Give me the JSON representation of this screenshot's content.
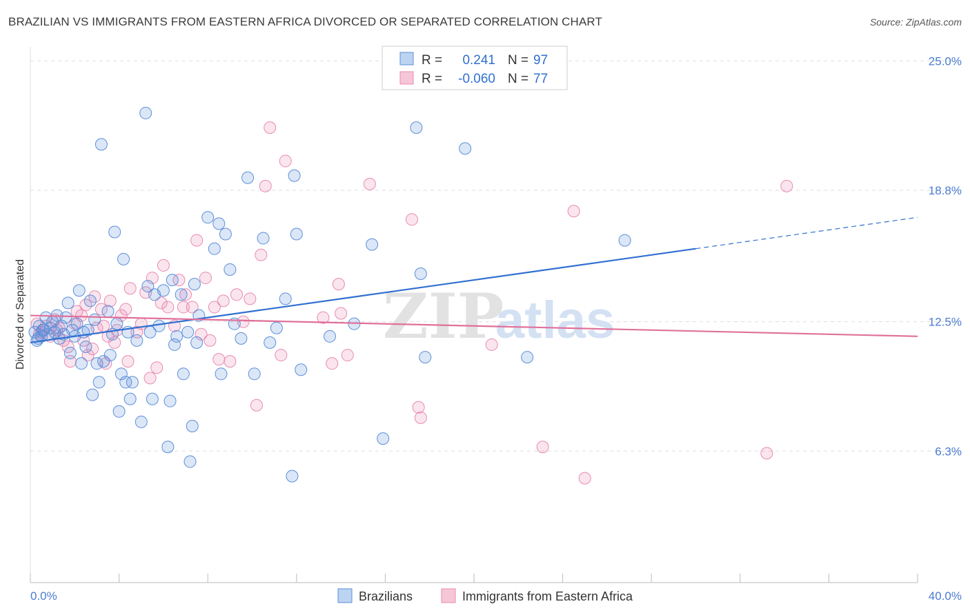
{
  "title": "BRAZILIAN VS IMMIGRANTS FROM EASTERN AFRICA DIVORCED OR SEPARATED CORRELATION CHART",
  "source": "Source: ZipAtlas.com",
  "watermark": {
    "zip": "ZIP",
    "atlas": "atlas"
  },
  "colors": {
    "blue": "#5b8fd9",
    "blue_line": "#2f6fd0",
    "pink": "#e88ab0",
    "pink_line": "#e0709a",
    "axis_text": "#4a7bd0"
  },
  "legend": {
    "rows": [
      {
        "r_label": "R =",
        "r_value": "0.241",
        "n_label": "N =",
        "n_value": "97"
      },
      {
        "r_label": "R =",
        "r_value": "-0.060",
        "n_label": "N =",
        "n_value": "77"
      }
    ]
  },
  "bottom_legend": [
    "Brazilians",
    "Immigrants from Eastern Africa"
  ],
  "chart_data": {
    "type": "scatter",
    "title": "BRAZILIAN VS IMMIGRANTS FROM EASTERN AFRICA DIVORCED OR SEPARATED CORRELATION CHART",
    "xlabel": "",
    "ylabel": "Divorced or Separated",
    "xlim": [
      0,
      40
    ],
    "ylim": [
      0,
      26
    ],
    "x_tick_labels": [
      "0.0%",
      "40.0%"
    ],
    "y_ticks": [
      6.3,
      12.5,
      18.8,
      25.0
    ],
    "y_tick_labels": [
      "6.3%",
      "12.5%",
      "18.8%",
      "25.0%"
    ],
    "grid": "horizontal dashed",
    "legend_position": "top-center",
    "series": [
      {
        "name": "Brazilians",
        "color": "#5b8fd9",
        "trend": {
          "x": [
            0,
            30
          ],
          "y": [
            11.5,
            16.0
          ],
          "dashed_to": [
            40,
            17.5
          ]
        },
        "points": [
          [
            0.2,
            12.0
          ],
          [
            0.3,
            11.6
          ],
          [
            0.4,
            12.3
          ],
          [
            0.5,
            11.8
          ],
          [
            0.6,
            12.1
          ],
          [
            0.7,
            12.7
          ],
          [
            0.8,
            11.9
          ],
          [
            0.9,
            12.2
          ],
          [
            1.0,
            12.5
          ],
          [
            1.1,
            12.0
          ],
          [
            1.2,
            12.8
          ],
          [
            1.4,
            12.3
          ],
          [
            1.5,
            11.9
          ],
          [
            1.6,
            12.7
          ],
          [
            1.7,
            13.4
          ],
          [
            1.8,
            11.0
          ],
          [
            1.9,
            12.1
          ],
          [
            2.0,
            11.8
          ],
          [
            2.1,
            12.4
          ],
          [
            2.2,
            14.0
          ],
          [
            2.3,
            10.5
          ],
          [
            2.5,
            11.3
          ],
          [
            2.6,
            12.1
          ],
          [
            2.7,
            13.5
          ],
          [
            2.8,
            9.0
          ],
          [
            2.9,
            12.6
          ],
          [
            3.0,
            10.5
          ],
          [
            3.1,
            9.6
          ],
          [
            3.2,
            21.0
          ],
          [
            3.3,
            10.6
          ],
          [
            3.5,
            13.0
          ],
          [
            3.6,
            10.9
          ],
          [
            3.8,
            16.8
          ],
          [
            3.9,
            12.4
          ],
          [
            4.0,
            8.2
          ],
          [
            4.1,
            10.0
          ],
          [
            4.2,
            15.5
          ],
          [
            4.3,
            9.6
          ],
          [
            4.4,
            12.0
          ],
          [
            4.5,
            8.8
          ],
          [
            4.6,
            9.6
          ],
          [
            4.8,
            11.6
          ],
          [
            5.0,
            7.7
          ],
          [
            5.2,
            22.5
          ],
          [
            5.3,
            14.2
          ],
          [
            5.4,
            12.0
          ],
          [
            5.5,
            8.8
          ],
          [
            5.6,
            13.8
          ],
          [
            5.8,
            12.3
          ],
          [
            6.0,
            14.0
          ],
          [
            6.2,
            6.5
          ],
          [
            6.3,
            8.7
          ],
          [
            6.4,
            14.5
          ],
          [
            6.5,
            11.4
          ],
          [
            6.6,
            11.8
          ],
          [
            6.8,
            13.8
          ],
          [
            6.9,
            10.0
          ],
          [
            7.1,
            12.0
          ],
          [
            7.2,
            5.8
          ],
          [
            7.3,
            7.5
          ],
          [
            7.4,
            14.3
          ],
          [
            7.5,
            11.5
          ],
          [
            7.6,
            12.8
          ],
          [
            8.0,
            17.5
          ],
          [
            8.3,
            16.0
          ],
          [
            8.5,
            17.2
          ],
          [
            8.6,
            10.0
          ],
          [
            8.8,
            16.7
          ],
          [
            9.0,
            15.0
          ],
          [
            9.2,
            12.4
          ],
          [
            9.5,
            11.7
          ],
          [
            9.8,
            19.4
          ],
          [
            10.1,
            10.0
          ],
          [
            10.5,
            16.5
          ],
          [
            10.8,
            11.5
          ],
          [
            11.1,
            12.2
          ],
          [
            11.5,
            13.6
          ],
          [
            11.8,
            5.1
          ],
          [
            11.9,
            19.5
          ],
          [
            12.0,
            16.7
          ],
          [
            12.2,
            10.2
          ],
          [
            13.5,
            11.8
          ],
          [
            14.6,
            12.4
          ],
          [
            15.4,
            16.2
          ],
          [
            15.9,
            6.9
          ],
          [
            17.4,
            21.8
          ],
          [
            17.6,
            14.8
          ],
          [
            17.8,
            10.8
          ],
          [
            19.6,
            20.8
          ],
          [
            22.4,
            10.8
          ],
          [
            26.8,
            16.4
          ],
          [
            0.35,
            11.7
          ],
          [
            0.55,
            12.1
          ],
          [
            1.3,
            11.7
          ],
          [
            2.4,
            12.0
          ],
          [
            3.7,
            11.9
          ]
        ]
      },
      {
        "name": "Immigrants from Eastern Africa",
        "color": "#e88ab0",
        "trend": {
          "x": [
            0,
            40
          ],
          "y": [
            12.8,
            11.8
          ]
        },
        "points": [
          [
            0.3,
            12.4
          ],
          [
            0.5,
            12.0
          ],
          [
            0.7,
            12.3
          ],
          [
            0.9,
            11.8
          ],
          [
            1.1,
            12.6
          ],
          [
            1.3,
            12.2
          ],
          [
            1.5,
            11.6
          ],
          [
            1.7,
            11.3
          ],
          [
            1.8,
            10.6
          ],
          [
            2.0,
            12.4
          ],
          [
            2.1,
            13.0
          ],
          [
            2.3,
            12.8
          ],
          [
            2.4,
            11.6
          ],
          [
            2.5,
            13.3
          ],
          [
            2.6,
            10.9
          ],
          [
            2.8,
            11.2
          ],
          [
            2.9,
            13.7
          ],
          [
            3.0,
            12.2
          ],
          [
            3.2,
            13.1
          ],
          [
            3.3,
            12.3
          ],
          [
            3.4,
            10.5
          ],
          [
            3.5,
            11.8
          ],
          [
            3.6,
            13.5
          ],
          [
            3.8,
            11.5
          ],
          [
            3.9,
            12.1
          ],
          [
            4.1,
            12.8
          ],
          [
            4.3,
            13.1
          ],
          [
            4.4,
            10.6
          ],
          [
            4.5,
            14.1
          ],
          [
            4.8,
            12.0
          ],
          [
            5.0,
            12.4
          ],
          [
            5.2,
            13.9
          ],
          [
            5.4,
            9.8
          ],
          [
            5.5,
            14.6
          ],
          [
            5.7,
            10.3
          ],
          [
            5.9,
            13.4
          ],
          [
            6.0,
            15.2
          ],
          [
            6.2,
            13.2
          ],
          [
            6.5,
            12.3
          ],
          [
            6.7,
            14.5
          ],
          [
            6.9,
            13.2
          ],
          [
            7.0,
            13.8
          ],
          [
            7.3,
            13.2
          ],
          [
            7.5,
            16.4
          ],
          [
            7.7,
            11.9
          ],
          [
            7.9,
            14.6
          ],
          [
            8.1,
            11.6
          ],
          [
            8.3,
            13.2
          ],
          [
            8.5,
            10.7
          ],
          [
            8.7,
            13.5
          ],
          [
            9.0,
            10.6
          ],
          [
            9.3,
            13.8
          ],
          [
            9.6,
            12.5
          ],
          [
            9.9,
            13.6
          ],
          [
            10.2,
            8.5
          ],
          [
            10.4,
            15.7
          ],
          [
            10.6,
            19.0
          ],
          [
            10.8,
            21.8
          ],
          [
            11.3,
            10.9
          ],
          [
            11.5,
            20.2
          ],
          [
            13.2,
            12.7
          ],
          [
            13.6,
            10.5
          ],
          [
            13.9,
            14.3
          ],
          [
            14.0,
            12.9
          ],
          [
            14.3,
            10.9
          ],
          [
            15.3,
            19.1
          ],
          [
            17.2,
            17.4
          ],
          [
            17.5,
            8.4
          ],
          [
            17.6,
            7.9
          ],
          [
            20.8,
            11.4
          ],
          [
            23.1,
            6.5
          ],
          [
            24.5,
            17.8
          ],
          [
            25.0,
            5.0
          ],
          [
            33.2,
            6.2
          ],
          [
            34.1,
            19.0
          ],
          [
            0.4,
            11.9
          ],
          [
            1.2,
            12.1
          ]
        ]
      }
    ]
  }
}
